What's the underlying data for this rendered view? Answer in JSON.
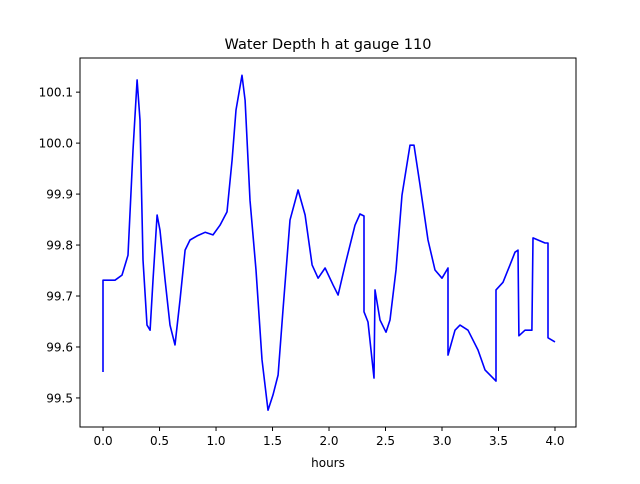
{
  "chart_data": {
    "type": "line",
    "title": "Water Depth h at gauge 110",
    "xlabel": "hours",
    "ylabel": "",
    "xlim": [
      -0.204,
      4.186
    ],
    "ylim": [
      99.443,
      100.167
    ],
    "xticks": [
      0.0,
      0.5,
      1.0,
      1.5,
      2.0,
      2.5,
      3.0,
      3.5,
      4.0
    ],
    "xtick_labels": [
      "0.0",
      "0.5",
      "1.0",
      "1.5",
      "2.0",
      "2.5",
      "3.0",
      "3.5",
      "4.0"
    ],
    "yticks": [
      99.5,
      99.6,
      99.7,
      99.8,
      99.9,
      100.0,
      100.1
    ],
    "ytick_labels": [
      "99.5",
      "99.6",
      "99.7",
      "99.8",
      "99.9",
      "100.0",
      "100.1"
    ],
    "grid": false,
    "series": [
      {
        "name": "h",
        "color": "#0000ff",
        "x": [
          0,
          0,
          0.106,
          0.168,
          0.221,
          0.265,
          0.301,
          0.327,
          0.354,
          0.389,
          0.416,
          0.442,
          0.478,
          0.504,
          0.549,
          0.593,
          0.637,
          0.681,
          0.726,
          0.77,
          0.832,
          0.903,
          0.973,
          1.035,
          1.097,
          1.142,
          1.177,
          1.23,
          1.257,
          1.301,
          1.354,
          1.407,
          1.46,
          1.504,
          1.549,
          1.593,
          1.655,
          1.726,
          1.788,
          1.85,
          1.903,
          1.965,
          2.035,
          2.08,
          2.142,
          2.23,
          2.274,
          2.31,
          2.31,
          2.345,
          2.398,
          2.407,
          2.451,
          2.504,
          2.54,
          2.593,
          2.646,
          2.717,
          2.752,
          2.805,
          2.876,
          2.938,
          3.0,
          3.053,
          3.053,
          3.115,
          3.159,
          3.23,
          3.319,
          3.381,
          3.478,
          3.478,
          3.54,
          3.602,
          3.646,
          3.673,
          3.681,
          3.735,
          3.796,
          3.805,
          3.912,
          3.938,
          3.938,
          4.0
        ],
        "y": [
          99.551,
          99.731,
          99.731,
          99.741,
          99.78,
          99.986,
          100.124,
          100.045,
          99.771,
          99.643,
          99.633,
          99.731,
          99.859,
          99.829,
          99.731,
          99.643,
          99.604,
          99.692,
          99.79,
          99.81,
          99.818,
          99.825,
          99.82,
          99.839,
          99.865,
          99.967,
          100.065,
          100.133,
          100.084,
          99.888,
          99.751,
          99.575,
          99.476,
          99.506,
          99.545,
          99.673,
          99.849,
          99.908,
          99.859,
          99.761,
          99.735,
          99.755,
          99.722,
          99.702,
          99.761,
          99.839,
          99.861,
          99.857,
          99.669,
          99.649,
          99.539,
          99.712,
          99.653,
          99.629,
          99.653,
          99.751,
          99.898,
          99.996,
          99.996,
          99.918,
          99.81,
          99.751,
          99.735,
          99.755,
          99.584,
          99.633,
          99.643,
          99.633,
          99.594,
          99.555,
          99.533,
          99.712,
          99.727,
          99.761,
          99.786,
          99.79,
          99.622,
          99.633,
          99.633,
          99.814,
          99.804,
          99.804,
          99.618,
          99.61
        ]
      }
    ]
  }
}
